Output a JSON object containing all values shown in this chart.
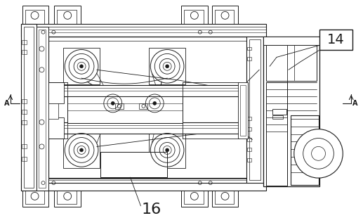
{
  "bg_color": "#ffffff",
  "line_color": "#1a1a1a",
  "label_14": "14",
  "label_16": "16",
  "fig_width": 5.17,
  "fig_height": 3.1,
  "dpi": 100,
  "roller_large_r": 22,
  "roller_mid_r": 11,
  "roller_small_r": 6,
  "roller_dot_r": 2.5
}
